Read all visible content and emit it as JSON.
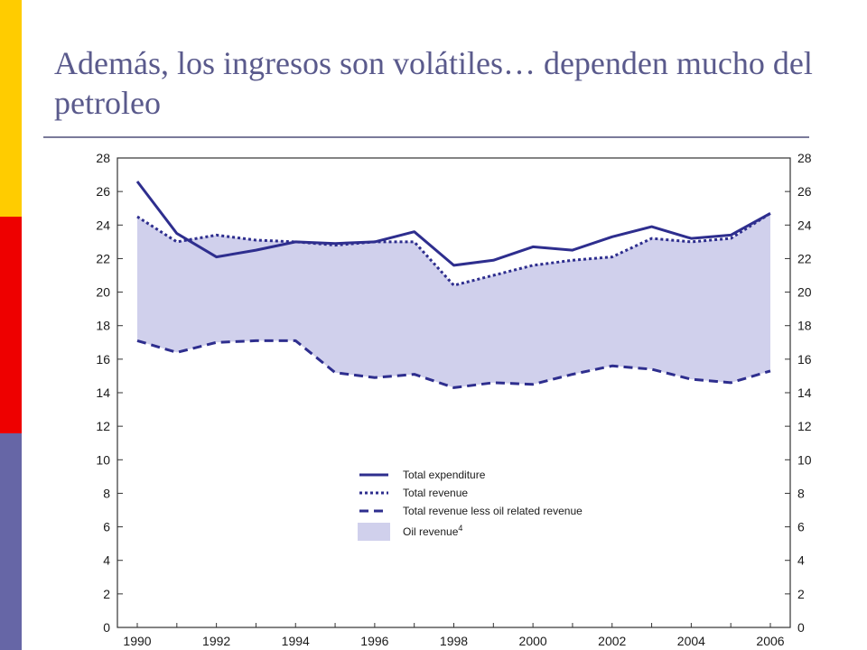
{
  "slide": {
    "title": "Además, los ingresos son volátiles… dependen mucho del petroleo",
    "accent_colors": {
      "yellow": "#ffcc00",
      "red": "#ee0000",
      "blue": "#6666a6"
    }
  },
  "chart_data": {
    "type": "line",
    "x": [
      1990,
      1991,
      1992,
      1993,
      1994,
      1995,
      1996,
      1997,
      1998,
      1999,
      2000,
      2001,
      2002,
      2003,
      2004,
      2005,
      2006
    ],
    "x_ticks": [
      "1990",
      "1992",
      "1994",
      "1996",
      "1998",
      "2000",
      "2002",
      "2004",
      "2006"
    ],
    "ylim": [
      0,
      28
    ],
    "y_ticks": [
      "0",
      "2",
      "4",
      "6",
      "8",
      "10",
      "12",
      "14",
      "16",
      "18",
      "20",
      "22",
      "24",
      "26",
      "28"
    ],
    "grid": false,
    "legend_position": "lower-center",
    "series": [
      {
        "name": "Total expenditure",
        "style": "solid",
        "color": "#2e2e8e",
        "values": [
          26.6,
          23.5,
          22.1,
          22.5,
          23.0,
          22.9,
          23.0,
          23.6,
          21.6,
          21.9,
          22.7,
          22.5,
          23.3,
          23.9,
          23.2,
          23.4,
          24.7
        ]
      },
      {
        "name": "Total revenue",
        "style": "dotted",
        "color": "#2e2e8e",
        "values": [
          24.5,
          23.0,
          23.4,
          23.1,
          23.0,
          22.8,
          23.0,
          23.0,
          20.4,
          21.0,
          21.6,
          21.9,
          22.1,
          23.2,
          23.0,
          23.2,
          24.7
        ]
      },
      {
        "name": "Total revenue less oil related revenue",
        "style": "dashed",
        "color": "#2e2e8e",
        "values": [
          17.1,
          16.4,
          17.0,
          17.1,
          17.1,
          15.2,
          14.9,
          15.1,
          14.3,
          14.6,
          14.5,
          15.1,
          15.6,
          15.4,
          14.8,
          14.6,
          15.3
        ]
      }
    ],
    "area": {
      "name": "Oil revenue",
      "superscript": "4",
      "color": "#d0d0ec",
      "between": [
        "Total revenue less oil related revenue",
        "Total revenue"
      ]
    }
  }
}
